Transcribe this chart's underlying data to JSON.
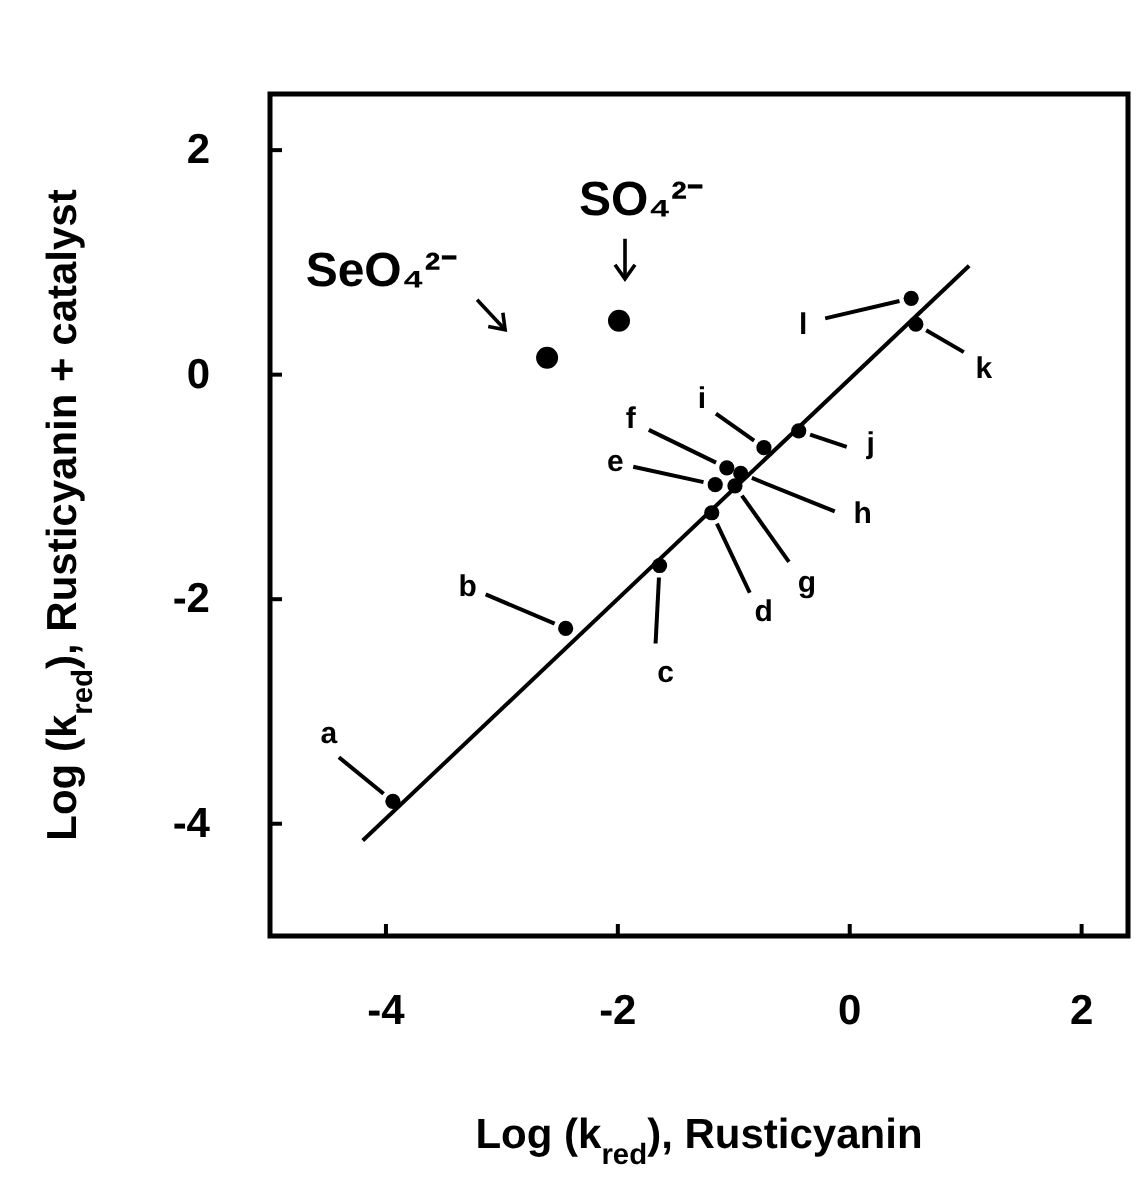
{
  "chart_data": {
    "type": "scatter",
    "xlabel": "Log (k$_{red}$), Rusticyanin",
    "ylabel": "Log (k$_{red}$), Rusticyanin + catalyst",
    "xlim": [
      -5,
      2.4
    ],
    "ylim": [
      -5,
      2.5
    ],
    "xticks": [
      -4,
      -2,
      0,
      2
    ],
    "yticks": [
      -4,
      -2,
      0,
      2
    ],
    "grid": false,
    "marker": "circle",
    "series": [
      {
        "color": "#000000",
        "x": [
          -3.94,
          -2.45,
          -1.64,
          -1.19,
          -1.16,
          -1.06,
          -0.99,
          -0.94,
          -0.74,
          -0.44,
          0.57,
          0.53
        ],
        "values": [
          -3.8,
          -2.26,
          -1.7,
          -1.23,
          -0.98,
          -0.83,
          -0.99,
          -0.88,
          -0.65,
          -0.5,
          0.45,
          0.68
        ]
      },
      {
        "color": "#000000",
        "x": [
          -2.61,
          -1.99
        ],
        "values": [
          0.15,
          0.48
        ]
      },
      {
        "type": "line",
        "color": "#000000",
        "line_style": "solid",
        "marker": "none",
        "x": [
          -4.2,
          1.03
        ],
        "values": [
          -4.15,
          0.97
        ]
      }
    ],
    "annotations": [
      {
        "text": "a",
        "x": -3.94,
        "y": -3.8
      },
      {
        "text": "b",
        "x": -2.45,
        "y": -2.26
      },
      {
        "text": "c",
        "x": -1.64,
        "y": -1.7
      },
      {
        "text": "d",
        "x": -1.19,
        "y": -1.23
      },
      {
        "text": "e",
        "x": -1.16,
        "y": -0.98
      },
      {
        "text": "f",
        "x": -1.06,
        "y": -0.83
      },
      {
        "text": "g",
        "x": -0.99,
        "y": -0.99
      },
      {
        "text": "h",
        "x": -0.94,
        "y": -0.88
      },
      {
        "text": "i",
        "x": -0.74,
        "y": -0.65
      },
      {
        "text": "j",
        "x": -0.44,
        "y": -0.5
      },
      {
        "text": "k",
        "x": 0.57,
        "y": 0.45
      },
      {
        "text": "l",
        "x": 0.53,
        "y": 0.68
      },
      {
        "text": "SeO₄²⁻",
        "x": -2.61,
        "y": 0.15
      },
      {
        "text": "SO₄²⁻",
        "x": -1.99,
        "y": 0.48
      }
    ]
  }
}
